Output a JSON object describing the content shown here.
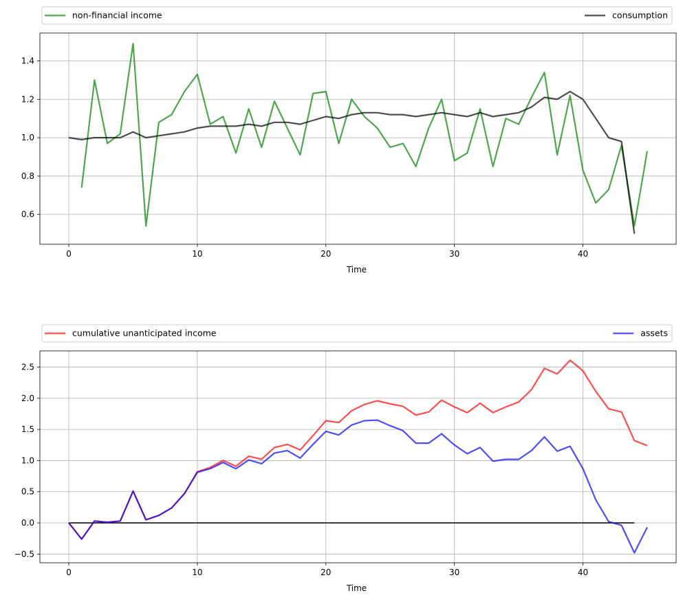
{
  "chart_data": [
    {
      "type": "line",
      "xlabel": "Time",
      "ylabel": "",
      "xlim": [
        -2.25,
        47.25
      ],
      "ylim": [
        0.445,
        1.545
      ],
      "xticks": [
        0,
        10,
        20,
        30,
        40
      ],
      "yticks": [
        0.6,
        0.8,
        1.0,
        1.2,
        1.4
      ],
      "xtick_labels": [
        "0",
        "10",
        "20",
        "30",
        "40"
      ],
      "ytick_labels": [
        "0.6",
        "0.8",
        "1.0",
        "1.2",
        "1.4"
      ],
      "grid": true,
      "legend_position": "above-plot",
      "series": [
        {
          "name": "non-financial income",
          "color": "#008000",
          "x": [
            1,
            2,
            3,
            4,
            5,
            6,
            7,
            8,
            9,
            10,
            11,
            12,
            13,
            14,
            15,
            16,
            17,
            18,
            19,
            20,
            21,
            22,
            23,
            24,
            25,
            26,
            27,
            28,
            29,
            30,
            31,
            32,
            33,
            34,
            35,
            36,
            37,
            38,
            39,
            40,
            41,
            42,
            43,
            44,
            45
          ],
          "values": [
            0.74,
            1.3,
            0.97,
            1.02,
            1.49,
            0.54,
            1.08,
            1.12,
            1.24,
            1.33,
            1.07,
            1.11,
            0.92,
            1.15,
            0.95,
            1.19,
            1.05,
            0.91,
            1.23,
            1.24,
            0.97,
            1.2,
            1.11,
            1.05,
            0.95,
            0.97,
            0.85,
            1.05,
            1.2,
            0.88,
            0.92,
            1.15,
            0.85,
            1.1,
            1.07,
            1.21,
            1.34,
            0.91,
            1.22,
            0.83,
            0.66,
            0.73,
            0.96,
            0.54,
            0.93
          ]
        },
        {
          "name": "consumption",
          "color": "#000000",
          "x": [
            0,
            1,
            2,
            3,
            4,
            5,
            6,
            7,
            8,
            9,
            10,
            11,
            12,
            13,
            14,
            15,
            16,
            17,
            18,
            19,
            20,
            21,
            22,
            23,
            24,
            25,
            26,
            27,
            28,
            29,
            30,
            31,
            32,
            33,
            34,
            35,
            36,
            37,
            38,
            39,
            40,
            41,
            42,
            43,
            44
          ],
          "values": [
            1.0,
            0.99,
            1.0,
            1.0,
            1.0,
            1.03,
            1.0,
            1.01,
            1.02,
            1.03,
            1.05,
            1.06,
            1.06,
            1.06,
            1.07,
            1.06,
            1.08,
            1.08,
            1.07,
            1.09,
            1.11,
            1.1,
            1.12,
            1.13,
            1.13,
            1.12,
            1.12,
            1.11,
            1.12,
            1.13,
            1.12,
            1.11,
            1.13,
            1.11,
            1.12,
            1.13,
            1.16,
            1.21,
            1.2,
            1.24,
            1.2,
            1.1,
            1.0,
            0.98,
            0.5
          ]
        }
      ]
    },
    {
      "type": "line",
      "xlabel": "Time",
      "ylabel": "",
      "xlim": [
        -2.25,
        47.25
      ],
      "ylim": [
        -0.64,
        2.76
      ],
      "xticks": [
        0,
        10,
        20,
        30,
        40
      ],
      "yticks": [
        -0.5,
        0.0,
        0.5,
        1.0,
        1.5,
        2.0,
        2.5
      ],
      "xtick_labels": [
        "0",
        "10",
        "20",
        "30",
        "40"
      ],
      "ytick_labels": [
        "−0.5",
        "0.0",
        "0.5",
        "1.0",
        "1.5",
        "2.0",
        "2.5"
      ],
      "grid": true,
      "legend_position": "above-plot",
      "series": [
        {
          "name": "cumulative unanticipated income",
          "color": "#ff0000",
          "x": [
            0,
            1,
            2,
            3,
            4,
            5,
            6,
            7,
            8,
            9,
            10,
            11,
            12,
            13,
            14,
            15,
            16,
            17,
            18,
            19,
            20,
            21,
            22,
            23,
            24,
            25,
            26,
            27,
            28,
            29,
            30,
            31,
            32,
            33,
            34,
            35,
            36,
            37,
            38,
            39,
            40,
            41,
            42,
            43,
            44,
            45
          ],
          "values": [
            0.0,
            -0.26,
            0.03,
            0.01,
            0.03,
            0.51,
            0.05,
            0.12,
            0.24,
            0.47,
            0.82,
            0.89,
            1.0,
            0.91,
            1.07,
            1.02,
            1.21,
            1.26,
            1.17,
            1.4,
            1.64,
            1.61,
            1.8,
            1.9,
            1.96,
            1.91,
            1.87,
            1.73,
            1.78,
            1.97,
            1.86,
            1.77,
            1.92,
            1.77,
            1.86,
            1.94,
            2.14,
            2.48,
            2.39,
            2.61,
            2.44,
            2.11,
            1.83,
            1.78,
            1.32,
            1.24
          ]
        },
        {
          "name": "assets",
          "color": "#0000ff",
          "x": [
            0,
            1,
            2,
            3,
            4,
            5,
            6,
            7,
            8,
            9,
            10,
            11,
            12,
            13,
            14,
            15,
            16,
            17,
            18,
            19,
            20,
            21,
            22,
            23,
            24,
            25,
            26,
            27,
            28,
            29,
            30,
            31,
            32,
            33,
            34,
            35,
            36,
            37,
            38,
            39,
            40,
            41,
            42,
            43,
            44,
            45
          ],
          "values": [
            0.0,
            -0.26,
            0.03,
            0.01,
            0.03,
            0.51,
            0.05,
            0.12,
            0.24,
            0.47,
            0.81,
            0.87,
            0.97,
            0.87,
            1.01,
            0.95,
            1.12,
            1.16,
            1.04,
            1.26,
            1.47,
            1.41,
            1.57,
            1.64,
            1.65,
            1.56,
            1.48,
            1.28,
            1.28,
            1.43,
            1.25,
            1.11,
            1.21,
            0.99,
            1.02,
            1.02,
            1.16,
            1.38,
            1.15,
            1.23,
            0.87,
            0.37,
            0.02,
            -0.04,
            -0.48,
            -0.07
          ]
        }
      ],
      "reference_line": {
        "color": "#000000",
        "y": 0,
        "x_start": 0,
        "x_end": 44
      }
    }
  ]
}
